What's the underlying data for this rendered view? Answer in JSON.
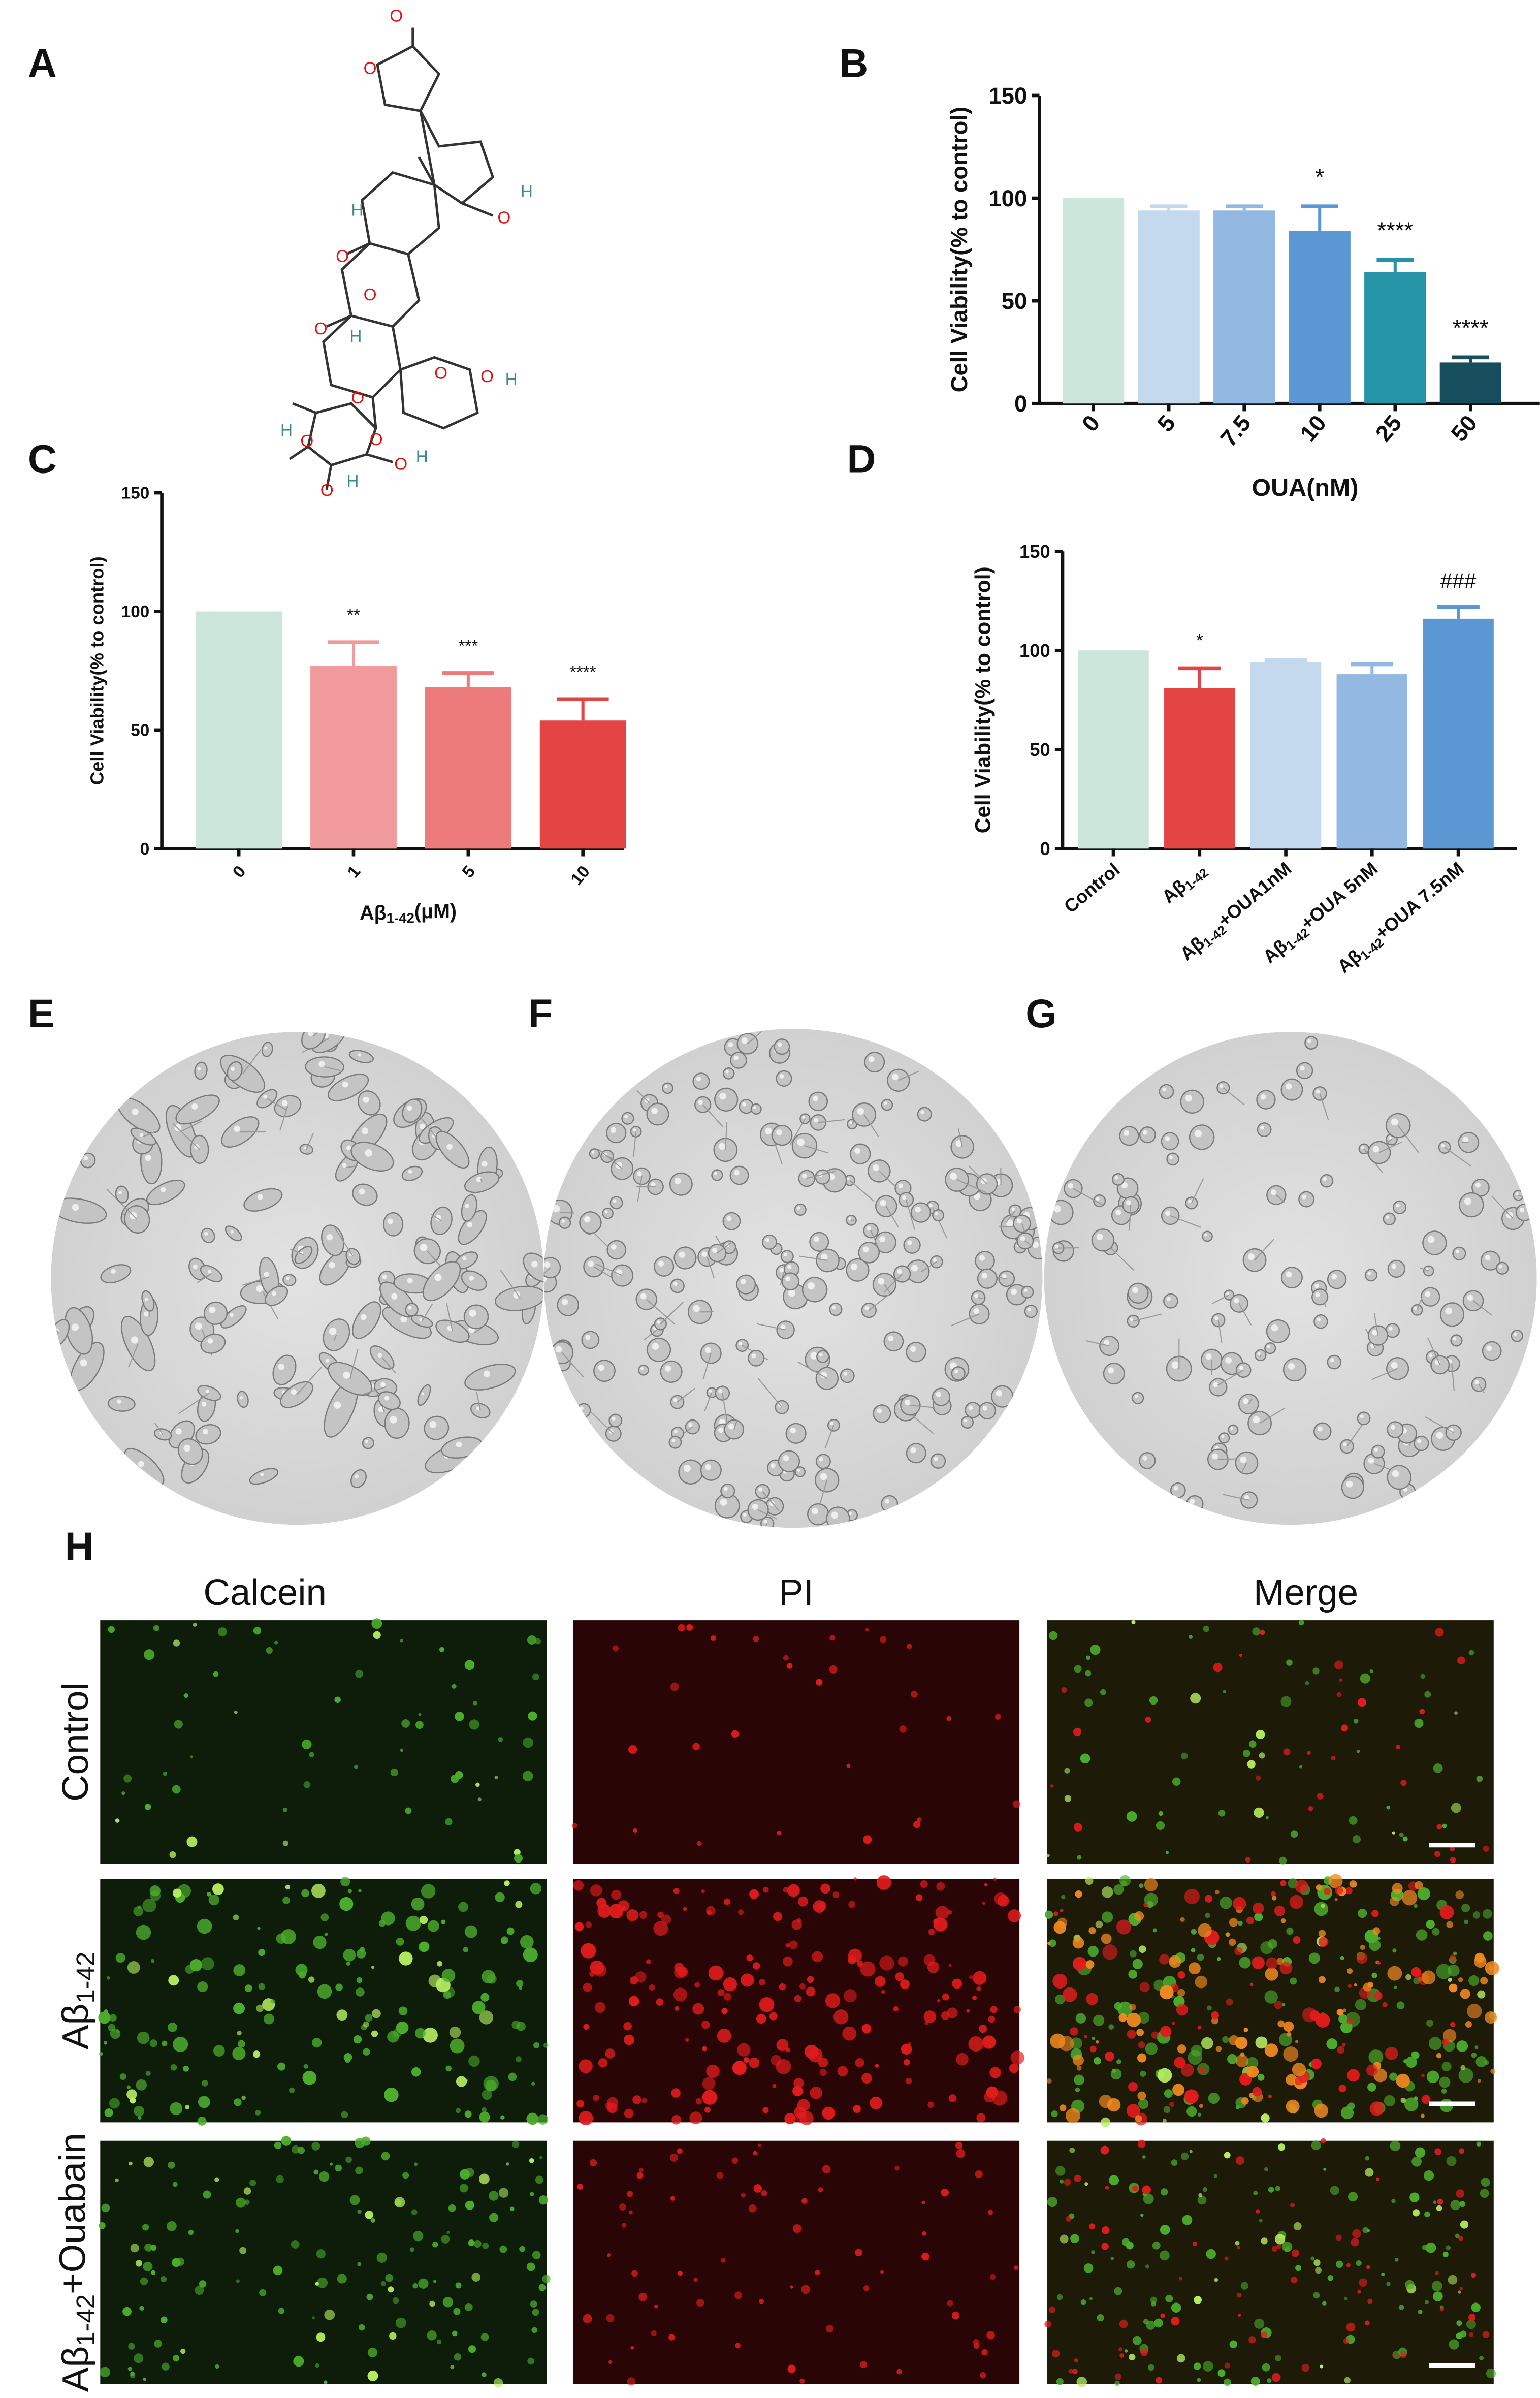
{
  "panel_labels": {
    "A": "A",
    "B": "B",
    "C": "C",
    "D": "D",
    "E": "E",
    "F": "F",
    "G": "G",
    "H": "H"
  },
  "molecule": {
    "oxygen": "O",
    "hydrogen": "H"
  },
  "chart_data": [
    {
      "id": "B",
      "type": "bar",
      "categories": [
        "0",
        "5",
        "7.5",
        "10",
        "25",
        "50"
      ],
      "values": [
        100,
        94,
        94,
        84,
        64,
        20
      ],
      "error_upper": [
        100,
        96,
        96,
        96,
        70,
        22.5
      ],
      "significance": [
        "",
        "",
        "",
        "*",
        "****",
        "****"
      ],
      "colors": [
        "#cce6dc",
        "#c5d9ee",
        "#93b8e2",
        "#5b97d2",
        "#2594a6",
        "#164e5e"
      ],
      "xlabel": "OUA(nM)",
      "ylabel": "Cell Viability(% to control)",
      "ylim": [
        0,
        150
      ],
      "yticks": [
        0,
        50,
        100,
        150
      ],
      "grid": false
    },
    {
      "id": "C",
      "type": "bar",
      "categories": [
        "0",
        "1",
        "5",
        "10"
      ],
      "values": [
        100,
        77,
        68,
        54
      ],
      "error_upper": [
        100,
        87,
        74,
        63
      ],
      "significance": [
        "",
        "**",
        "***",
        "****"
      ],
      "colors": [
        "#cce6dc",
        "#f09a9c",
        "#ee7b7b",
        "#e34444"
      ],
      "xlabel": "Aβ1-42(μM)",
      "ylabel": "Cell Viability(% to control)",
      "ylim": [
        0,
        150
      ],
      "yticks": [
        0,
        50,
        100,
        150
      ],
      "grid": false
    },
    {
      "id": "D",
      "type": "bar",
      "categories": [
        "Control",
        "Aβ1-42",
        "Aβ1-42+OUA1nM",
        "Aβ1-42+OUA 5nM",
        "Aβ1-42+OUA 7.5nM"
      ],
      "values": [
        100,
        81,
        94,
        88,
        116
      ],
      "error_upper": [
        100,
        91,
        95,
        93,
        122
      ],
      "significance": [
        "",
        "*",
        "",
        "",
        "###"
      ],
      "colors": [
        "#cce6dc",
        "#e34444",
        "#c5d9ee",
        "#93b8e2",
        "#5b97d2"
      ],
      "xlabel": "",
      "ylabel": "Cell Viability(% to control)",
      "ylim": [
        0,
        150
      ],
      "yticks": [
        0,
        50,
        100,
        150
      ],
      "grid": false
    }
  ],
  "fluorescence": {
    "columns": [
      "Calcein",
      "PI",
      "Merge"
    ],
    "rows": [
      "Control",
      "Aβ1-42",
      "Aβ1-42+Ouabain"
    ]
  }
}
